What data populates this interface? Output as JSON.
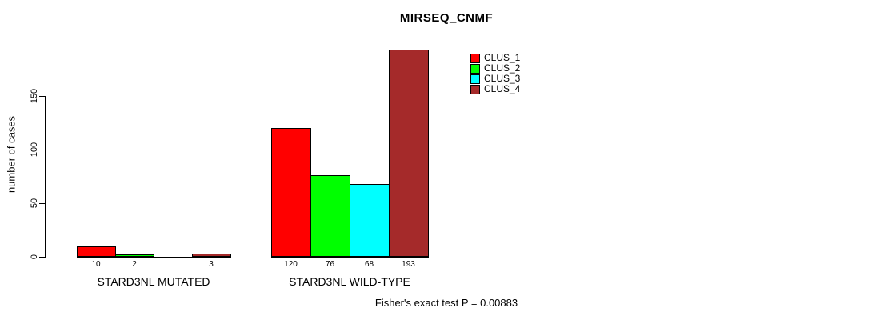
{
  "chart_data": {
    "type": "bar",
    "title": "MIRSEQ_CNMF",
    "ylabel": "number of cases",
    "y_axis": {
      "ticks": [
        0,
        50,
        100,
        150
      ],
      "range": [
        0,
        193
      ],
      "grid": false
    },
    "series": [
      {
        "name": "CLUS_1",
        "color": "#FF0000"
      },
      {
        "name": "CLUS_2",
        "color": "#00FF00"
      },
      {
        "name": "CLUS_3",
        "color": "#00FFFF"
      },
      {
        "name": "CLUS_4",
        "color": "#A52A2A"
      }
    ],
    "groups": [
      {
        "label": "STARD3NL MUTATED",
        "values": [
          10,
          2,
          0,
          3
        ],
        "bar_labels": [
          "10",
          "2",
          "",
          "3"
        ]
      },
      {
        "label": "STARD3NL WILD-TYPE",
        "values": [
          120,
          76,
          68,
          193
        ],
        "bar_labels": [
          "120",
          "76",
          "68",
          "193"
        ]
      }
    ],
    "annotation": "Fisher's exact test P = 0.00883",
    "legend_position": "top-right"
  }
}
